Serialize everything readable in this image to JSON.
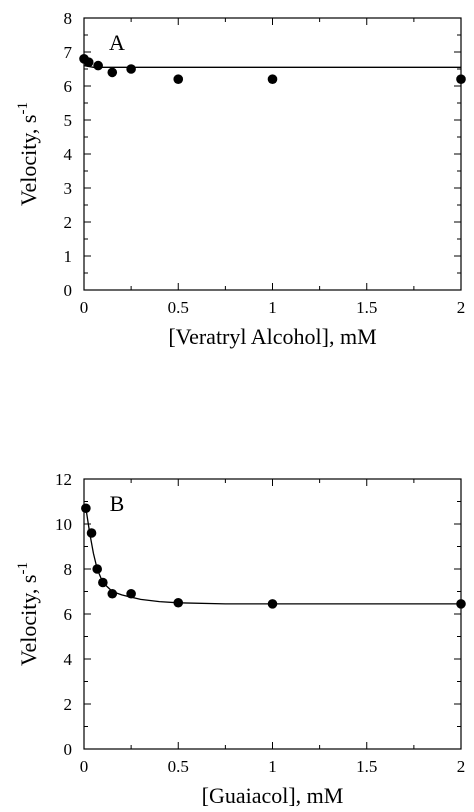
{
  "chart_data": [
    {
      "type": "scatter",
      "panel_label": "A",
      "xlabel": "[Veratryl Alcohol], mM",
      "ylabel": "Velocity, s",
      "ylabel_exponent": "-1",
      "xlim": [
        0,
        2
      ],
      "ylim": [
        0,
        8
      ],
      "x_ticks": [
        "0",
        "0.5",
        "1",
        "1.5",
        "2"
      ],
      "x_tick_values": [
        0,
        0.5,
        1,
        1.5,
        2
      ],
      "y_ticks": [
        "0",
        "1",
        "2",
        "3",
        "4",
        "5",
        "6",
        "7",
        "8"
      ],
      "y_tick_values": [
        0,
        1,
        2,
        3,
        4,
        5,
        6,
        7,
        8
      ],
      "grid": false,
      "series": [
        {
          "points": [
            {
              "x": 0,
              "y": 6.8
            },
            {
              "x": 0.025,
              "y": 6.7
            },
            {
              "x": 0.075,
              "y": 6.6
            },
            {
              "x": 0.15,
              "y": 6.4
            },
            {
              "x": 0.25,
              "y": 6.5
            },
            {
              "x": 0.5,
              "y": 6.2
            },
            {
              "x": 1,
              "y": 6.2
            },
            {
              "x": 2,
              "y": 6.2
            }
          ],
          "fit": [
            {
              "x": 0,
              "y": 6.6
            },
            {
              "x": 0.05,
              "y": 6.55
            },
            {
              "x": 2,
              "y": 6.55
            }
          ]
        }
      ]
    },
    {
      "type": "scatter",
      "panel_label": "B",
      "xlabel": "[Guaiacol], mM",
      "ylabel": "Velocity, s",
      "ylabel_exponent": "-1",
      "xlim": [
        0,
        2
      ],
      "ylim": [
        0,
        12
      ],
      "x_ticks": [
        "0",
        "0.5",
        "1",
        "1.5",
        "2"
      ],
      "x_tick_values": [
        0,
        0.5,
        1,
        1.5,
        2
      ],
      "y_ticks": [
        "0",
        "2",
        "4",
        "6",
        "8",
        "10",
        "12"
      ],
      "y_tick_values": [
        0,
        2,
        4,
        6,
        8,
        10,
        12
      ],
      "grid": false,
      "series": [
        {
          "points": [
            {
              "x": 0.01,
              "y": 10.7
            },
            {
              "x": 0.04,
              "y": 9.6
            },
            {
              "x": 0.07,
              "y": 8.0
            },
            {
              "x": 0.1,
              "y": 7.4
            },
            {
              "x": 0.15,
              "y": 6.9
            },
            {
              "x": 0.25,
              "y": 6.9
            },
            {
              "x": 0.5,
              "y": 6.5
            },
            {
              "x": 1,
              "y": 6.45
            },
            {
              "x": 2,
              "y": 6.45
            }
          ],
          "fit": [
            {
              "x": 0.01,
              "y": 10.7
            },
            {
              "x": 0.03,
              "y": 9.6
            },
            {
              "x": 0.05,
              "y": 8.7
            },
            {
              "x": 0.07,
              "y": 8.0
            },
            {
              "x": 0.1,
              "y": 7.4
            },
            {
              "x": 0.15,
              "y": 7.0
            },
            {
              "x": 0.2,
              "y": 6.85
            },
            {
              "x": 0.3,
              "y": 6.65
            },
            {
              "x": 0.4,
              "y": 6.55
            },
            {
              "x": 0.5,
              "y": 6.5
            },
            {
              "x": 0.75,
              "y": 6.45
            },
            {
              "x": 1,
              "y": 6.45
            },
            {
              "x": 1.5,
              "y": 6.45
            },
            {
              "x": 2,
              "y": 6.45
            }
          ]
        }
      ]
    }
  ]
}
